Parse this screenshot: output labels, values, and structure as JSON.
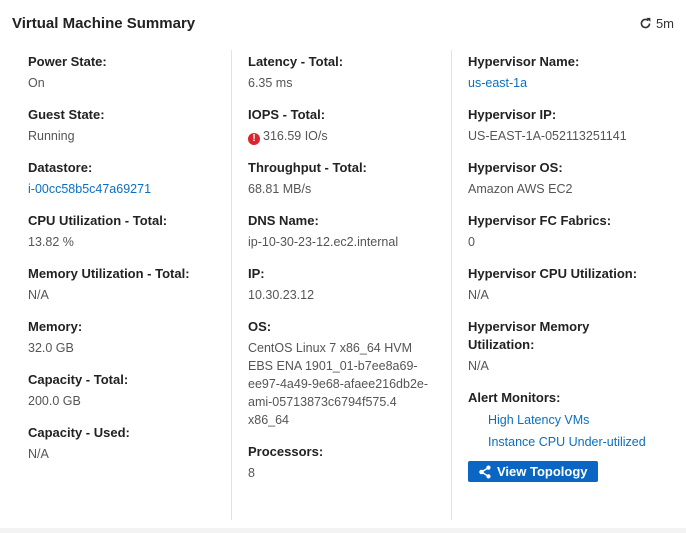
{
  "header": {
    "title": "Virtual Machine Summary",
    "refresh_interval": "5m",
    "refresh_icon": "refresh-icon"
  },
  "col1": [
    {
      "label": "Power State:",
      "value": "On"
    },
    {
      "label": "Guest State:",
      "value": "Running"
    },
    {
      "label": "Datastore:",
      "value": "i-00cc58b5c47a69271",
      "link": true
    },
    {
      "label": "CPU Utilization - Total:",
      "value": "13.82 %"
    },
    {
      "label": "Memory Utilization - Total:",
      "value": "N/A"
    },
    {
      "label": "Memory:",
      "value": "32.0 GB"
    },
    {
      "label": "Capacity - Total:",
      "value": "200.0 GB"
    },
    {
      "label": "Capacity - Used:",
      "value": "N/A"
    }
  ],
  "col2": [
    {
      "label": "Latency - Total:",
      "value": "6.35 ms"
    },
    {
      "label": "IOPS - Total:",
      "value": "316.59 IO/s",
      "alert": true
    },
    {
      "label": "Throughput - Total:",
      "value": "68.81 MB/s"
    },
    {
      "label": "DNS Name:",
      "value": "ip-10-30-23-12.ec2.internal"
    },
    {
      "label": "IP:",
      "value": "10.30.23.12"
    },
    {
      "label": "OS:",
      "value": "CentOS Linux 7 x86_64 HVM EBS ENA 1901_01-b7ee8a69-ee97-4a49-9e68-afaee216db2e-ami-05713873c6794f575.4 x86_64"
    },
    {
      "label": "Processors:",
      "value": "8"
    }
  ],
  "col3": [
    {
      "label": "Hypervisor Name:",
      "value": "us-east-1a",
      "link": true
    },
    {
      "label": "Hypervisor IP:",
      "value": "US-EAST-1A-052113251141"
    },
    {
      "label": "Hypervisor OS:",
      "value": "Amazon AWS EC2"
    },
    {
      "label": "Hypervisor FC Fabrics:",
      "value": "0"
    },
    {
      "label": "Hypervisor CPU Utilization:",
      "value": "N/A"
    },
    {
      "label": "Hypervisor Memory Utilization:",
      "value": "N/A"
    }
  ],
  "alert_monitors": {
    "label": "Alert Monitors:",
    "items": [
      "High Latency VMs",
      "Instance CPU Under-utilized"
    ]
  },
  "view_topology_label": "View Topology",
  "colors": {
    "link": "#0a6fc2",
    "button": "#0a66c2",
    "alert": "#d9252f"
  }
}
